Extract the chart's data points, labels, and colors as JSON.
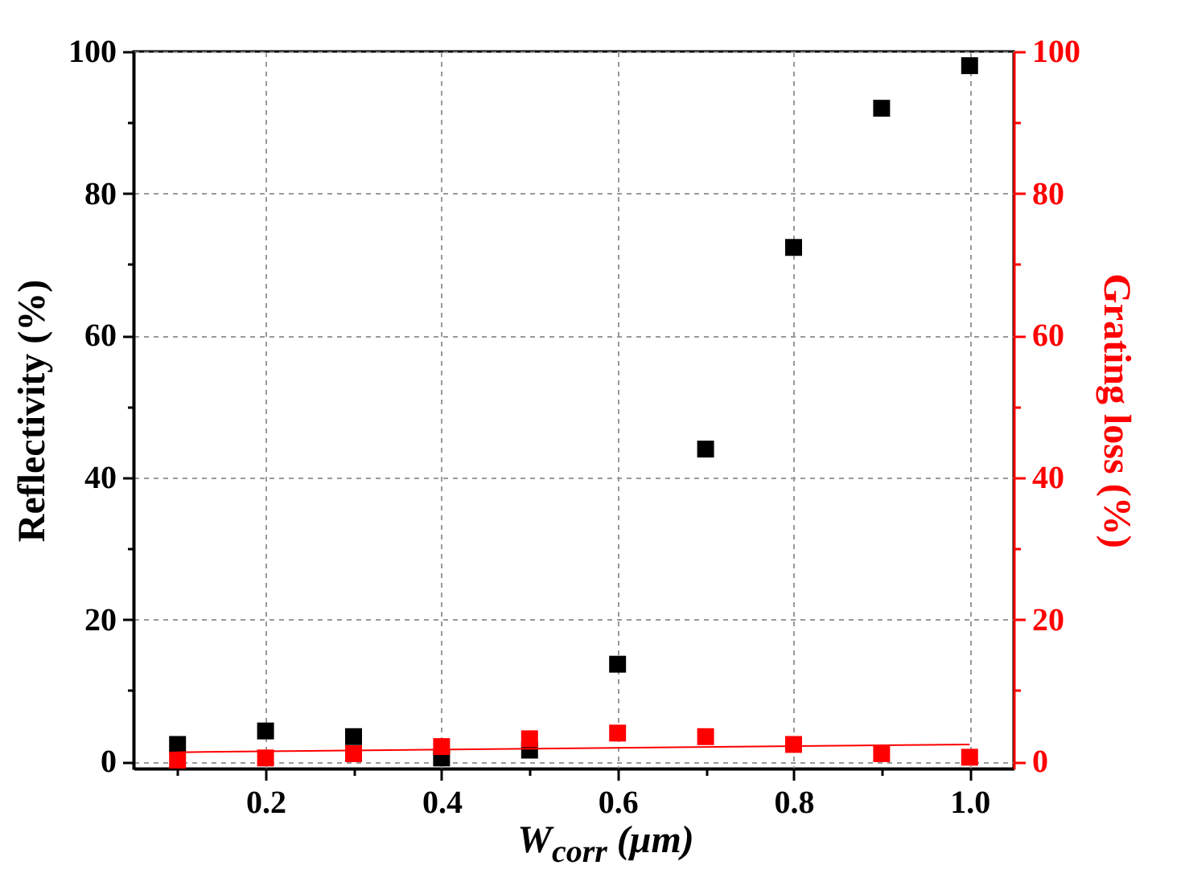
{
  "chart_data": {
    "type": "scatter",
    "xlabel": "W$_{corr}$ (μm)",
    "ylabel": "Reflectivity (%)",
    "y2label": "Grating loss (%)",
    "x": [
      0.1,
      0.2,
      0.3,
      0.4,
      0.5,
      0.6,
      0.7,
      0.8,
      0.9,
      1.0
    ],
    "series": [
      {
        "color": "#000000",
        "values": [
          2.4,
          4.3,
          3.5,
          0.5,
          1.6,
          13.7,
          44,
          72.4,
          92,
          98
        ]
      },
      {
        "color": "#ff0000",
        "axis": "y2",
        "values": [
          0.2,
          0.5,
          1.1,
          2.1,
          3.2,
          4.0,
          3.5,
          2.4,
          1.1,
          0.6
        ]
      },
      {
        "type": "line",
        "marker": "none",
        "color": "#ff0000",
        "axis": "y2",
        "x": [
          0.1,
          1.0
        ],
        "values": [
          1.3,
          2.4
        ]
      }
    ],
    "xlim": [
      0.05,
      1.05
    ],
    "xticks": [
      {
        "value": 0.1,
        "label": null
      },
      0.2,
      {
        "value": 0.3,
        "label": null
      },
      0.4,
      {
        "value": 0.5,
        "label": null
      },
      0.6,
      {
        "value": 0.7,
        "label": null
      },
      0.8,
      {
        "value": 0.9,
        "label": null
      },
      {
        "value": 1.0,
        "label": "1.0"
      }
    ],
    "ylim": [
      -1,
      100
    ],
    "yticks": [
      0,
      {
        "value": 10,
        "label": null
      },
      20,
      {
        "value": 30,
        "label": null
      },
      40,
      {
        "value": 50,
        "label": null
      },
      60,
      {
        "value": 70,
        "label": null
      },
      80,
      {
        "value": 90,
        "label": null
      },
      100
    ],
    "y2lim": [
      -1,
      100
    ],
    "y2ticks": [
      0,
      {
        "value": 10,
        "label": null
      },
      20,
      {
        "value": 30,
        "label": null
      },
      40,
      {
        "value": 50,
        "label": null
      },
      60,
      {
        "value": 70,
        "label": null
      },
      80,
      {
        "value": 90,
        "label": null
      },
      100
    ],
    "grid": true,
    "marker": "square"
  }
}
